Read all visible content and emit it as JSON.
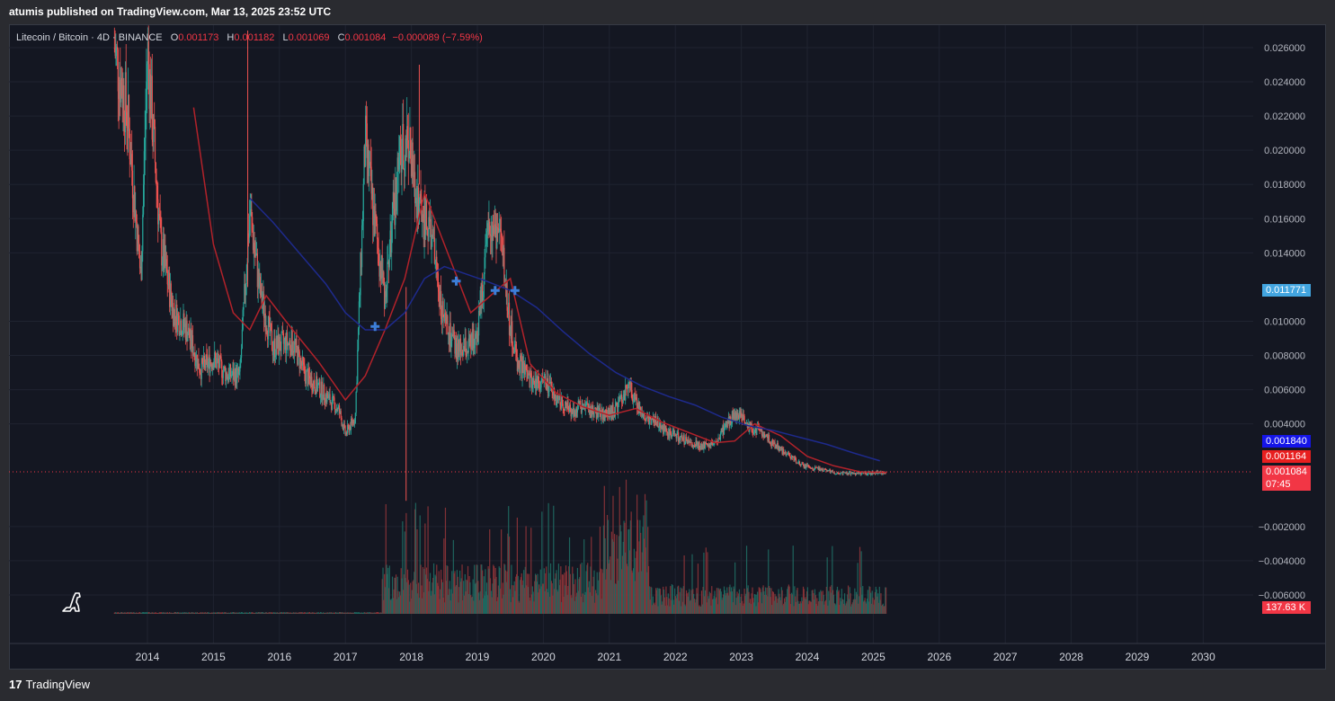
{
  "header": {
    "published": "atumis published on TradingView.com, Mar 13, 2025 23:52 UTC"
  },
  "legend": {
    "symbol": "Litecoin / Bitcoin · 4D · BINANCE",
    "o_label": "O",
    "o": "0.001173",
    "h_label": "H",
    "h": "0.001182",
    "l_label": "L",
    "l": "0.001069",
    "c_label": "C",
    "c": "0.001084",
    "change": "−0.000089 (−7.59%)"
  },
  "price_tags": {
    "cursor": "0.011771",
    "blue_ma": "0.001840",
    "red_ma": "0.001164",
    "last": "0.001084",
    "countdown": "07:45",
    "volume": "137.63 K"
  },
  "footer": {
    "brand": "TradingView",
    "logo_glyph": "17"
  },
  "colors": {
    "up": "#26a69a",
    "down": "#ef5350",
    "ma_red": "#b2222a",
    "ma_blue": "#1e2a8c",
    "marker": "#3d7fd9",
    "tag_cursor": "#42a5e0",
    "tag_blue": "#1515e8",
    "tag_red": "#e81f1f",
    "tag_last": "#f23645"
  },
  "chart_data": {
    "type": "candlestick",
    "symbol": "Litecoin / Bitcoin",
    "interval": "4D",
    "exchange": "BINANCE",
    "x_ticks": [
      "2014",
      "2015",
      "2016",
      "2017",
      "2018",
      "2019",
      "2020",
      "2021",
      "2022",
      "2023",
      "2024",
      "2025",
      "2026",
      "2027",
      "2028",
      "2029",
      "2030"
    ],
    "y_ticks": [
      "0.026000",
      "0.024000",
      "0.022000",
      "0.020000",
      "0.018000",
      "0.016000",
      "0.014000",
      "0.010000",
      "0.008000",
      "0.006000",
      "0.004000",
      "−0.002000",
      "−0.004000",
      "−0.006000"
    ],
    "ylim": [
      -0.0074,
      0.0271
    ],
    "xlim": [
      2013.12,
      2030.92
    ],
    "price_series": {
      "name": "price",
      "x": [
        2013.5,
        2013.7,
        2013.9,
        2014.0,
        2014.2,
        2014.4,
        2014.6,
        2014.8,
        2015.0,
        2015.2,
        2015.4,
        2015.55,
        2015.7,
        2015.9,
        2016.2,
        2016.4,
        2016.6,
        2016.9,
        2017.0,
        2017.15,
        2017.3,
        2017.45,
        2017.6,
        2017.8,
        2017.95,
        2018.05,
        2018.15,
        2018.3,
        2018.5,
        2018.7,
        2018.9,
        2019.0,
        2019.2,
        2019.35,
        2019.5,
        2019.6,
        2019.8,
        2020.0,
        2020.2,
        2020.4,
        2020.6,
        2020.9,
        2021.1,
        2021.3,
        2021.5,
        2021.7,
        2021.9,
        2022.1,
        2022.4,
        2022.6,
        2022.8,
        2022.95,
        2023.1,
        2023.3,
        2023.5,
        2023.7,
        2023.9,
        2024.1,
        2024.4,
        2024.7,
        2024.9,
        2025.1,
        2025.2
      ],
      "values": [
        0.026,
        0.022,
        0.0125,
        0.026,
        0.0145,
        0.0105,
        0.0095,
        0.0072,
        0.0078,
        0.0069,
        0.0068,
        0.0165,
        0.0118,
        0.0085,
        0.0088,
        0.0068,
        0.0061,
        0.0048,
        0.0034,
        0.0044,
        0.0205,
        0.0155,
        0.0115,
        0.019,
        0.021,
        0.0175,
        0.0165,
        0.015,
        0.0098,
        0.0082,
        0.0085,
        0.0095,
        0.016,
        0.015,
        0.0095,
        0.0077,
        0.0065,
        0.0065,
        0.0055,
        0.0048,
        0.005,
        0.0045,
        0.0048,
        0.0062,
        0.0045,
        0.0041,
        0.0035,
        0.0031,
        0.0027,
        0.0028,
        0.0042,
        0.0047,
        0.0038,
        0.0036,
        0.0028,
        0.0022,
        0.0016,
        0.0014,
        0.00115,
        0.0011,
        0.00112,
        0.00118,
        0.001084
      ]
    },
    "ma_red": {
      "name": "MA",
      "x": [
        2014.7,
        2015.0,
        2015.3,
        2015.55,
        2015.8,
        2016.2,
        2016.6,
        2017.0,
        2017.3,
        2017.6,
        2017.9,
        2018.2,
        2018.5,
        2018.9,
        2019.2,
        2019.5,
        2019.8,
        2020.2,
        2020.6,
        2021.0,
        2021.4,
        2021.8,
        2022.2,
        2022.6,
        2022.9,
        2023.2,
        2023.6,
        2024.0,
        2024.4,
        2024.8,
        2025.2
      ],
      "values": [
        0.0225,
        0.0145,
        0.0105,
        0.0095,
        0.0115,
        0.0095,
        0.0076,
        0.0054,
        0.0068,
        0.0095,
        0.0125,
        0.0175,
        0.0145,
        0.0105,
        0.0115,
        0.0125,
        0.0075,
        0.0058,
        0.005,
        0.0045,
        0.0049,
        0.0041,
        0.0035,
        0.0029,
        0.003,
        0.004,
        0.0033,
        0.0021,
        0.00155,
        0.0012,
        0.001164
      ]
    },
    "ma_blue": {
      "name": "MA",
      "x": [
        2015.55,
        2015.9,
        2016.3,
        2016.7,
        2017.0,
        2017.3,
        2017.6,
        2017.9,
        2018.2,
        2018.5,
        2018.8,
        2019.1,
        2019.5,
        2019.9,
        2020.3,
        2020.7,
        2021.1,
        2021.5,
        2021.9,
        2022.3,
        2022.7,
        2023.1,
        2023.5,
        2023.9,
        2024.3,
        2024.7,
        2025.1
      ],
      "values": [
        0.0172,
        0.0158,
        0.014,
        0.0122,
        0.0105,
        0.0095,
        0.0095,
        0.0105,
        0.0125,
        0.0132,
        0.0128,
        0.0124,
        0.0118,
        0.0108,
        0.0094,
        0.0081,
        0.007,
        0.0062,
        0.0056,
        0.0051,
        0.0044,
        0.0039,
        0.0036,
        0.0032,
        0.0028,
        0.0023,
        0.00184
      ]
    },
    "markers": {
      "x": [
        2017.45,
        2018.68,
        2019.27,
        2019.57
      ],
      "values": [
        0.0097,
        0.01235,
        0.0118,
        0.0118
      ]
    },
    "last_price": 0.001084
  }
}
